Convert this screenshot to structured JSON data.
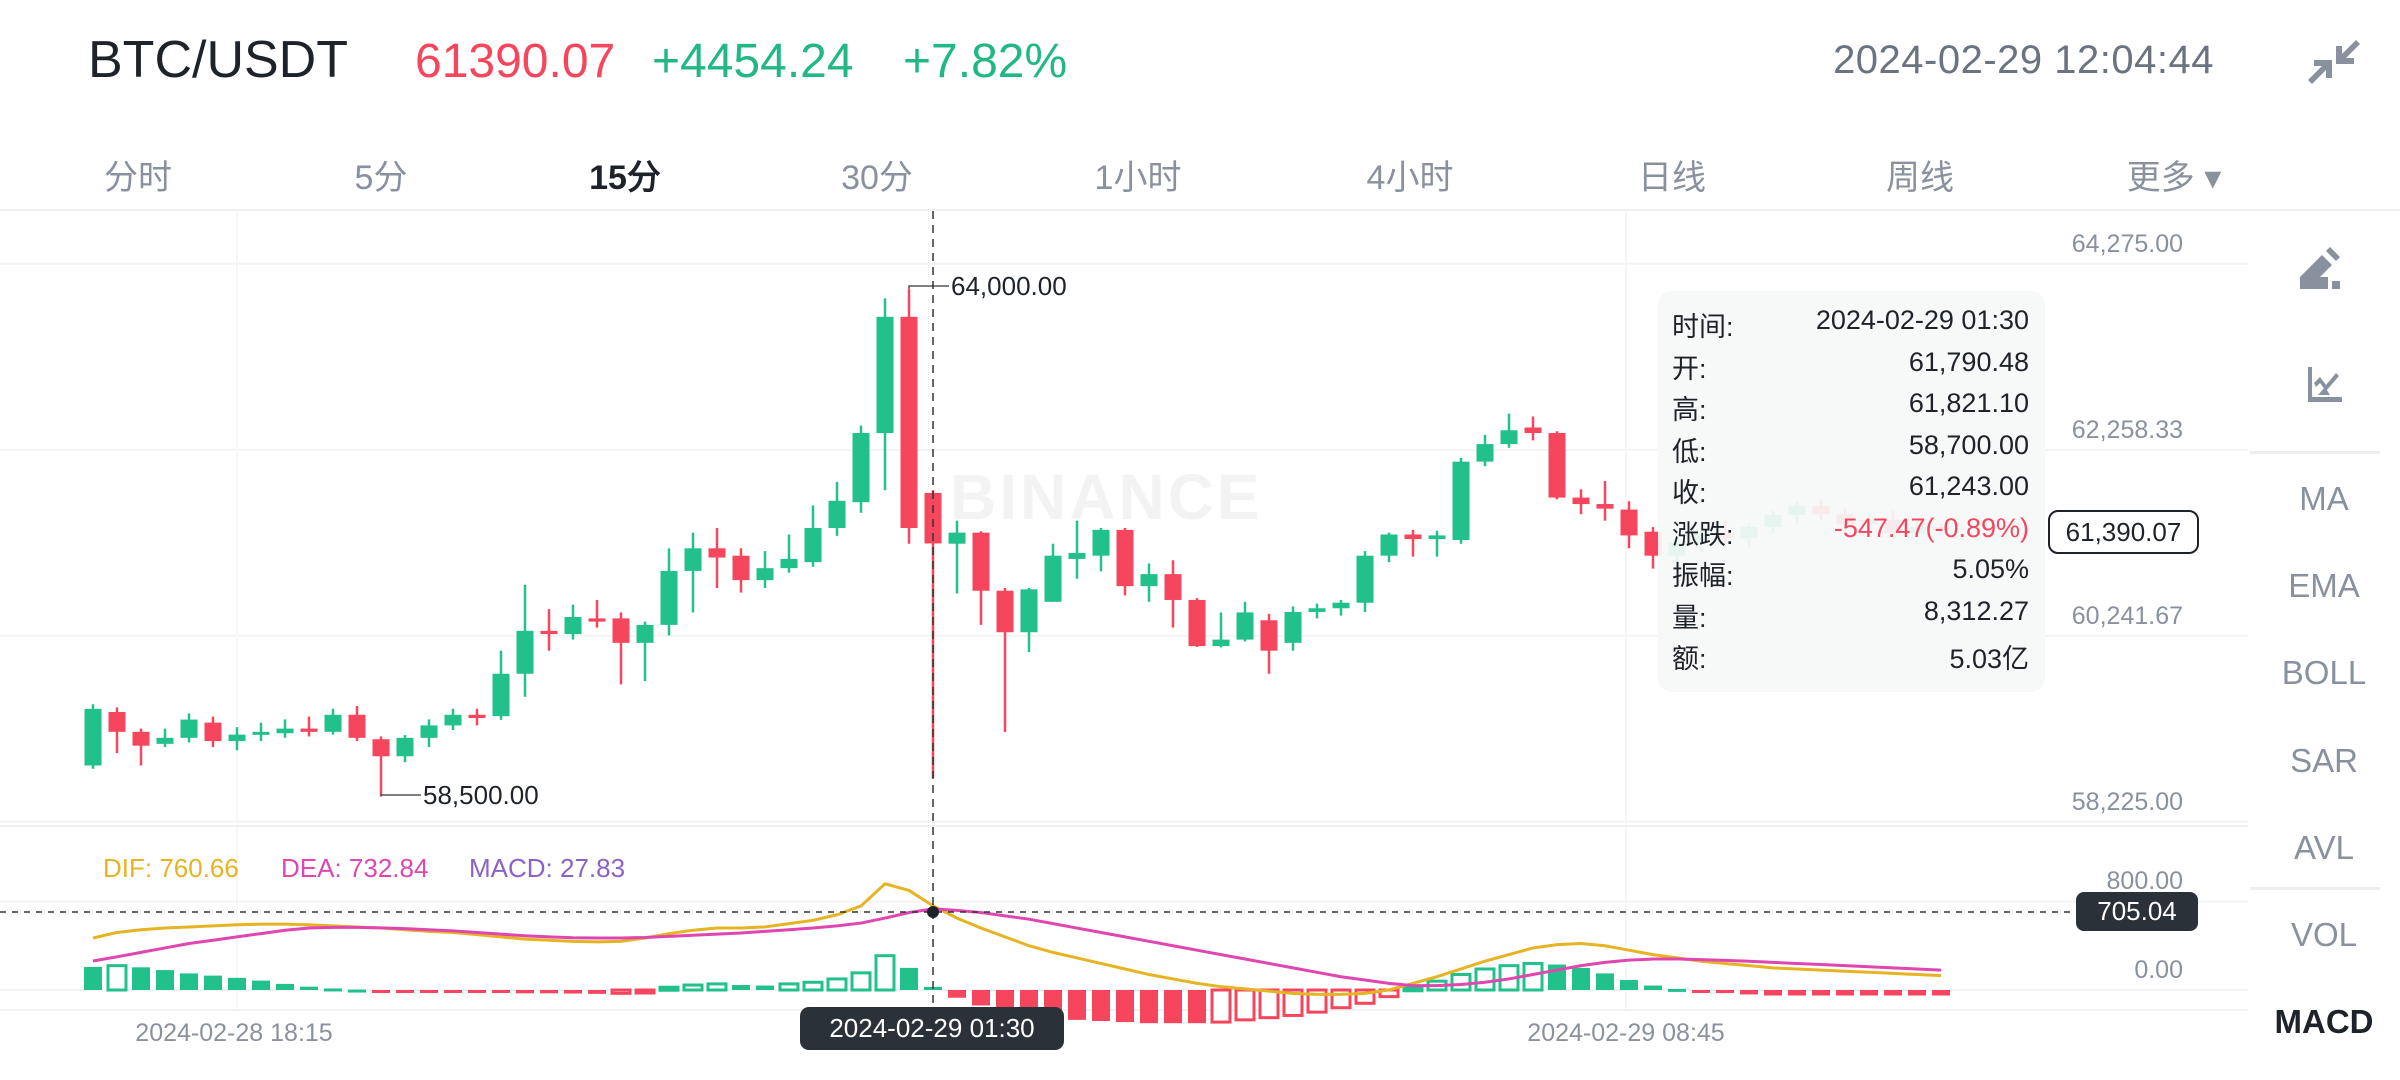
{
  "header": {
    "symbol": "BTC/USDT",
    "price": "61390.07",
    "change": "+4454.24",
    "change_pct": "+7.82%",
    "datetime": "2024-02-29 12:04:44",
    "shrink_icon": "collapse-arrows-icon"
  },
  "tabs": [
    {
      "label": "分时",
      "active": false
    },
    {
      "label": "5分",
      "active": false
    },
    {
      "label": "15分",
      "active": true
    },
    {
      "label": "30分",
      "active": false
    },
    {
      "label": "1小时",
      "active": false
    },
    {
      "label": "4小时",
      "active": false
    },
    {
      "label": "日线",
      "active": false
    },
    {
      "label": "周线",
      "active": false
    },
    {
      "label": "更多 ▾",
      "active": false
    }
  ],
  "sidebar": {
    "icons": [
      "draw-pencil-icon",
      "indicator-chart-icon"
    ],
    "items": [
      "MA",
      "EMA",
      "BOLL",
      "SAR",
      "AVL",
      "VOL",
      "MACD"
    ],
    "active": "MACD"
  },
  "watermark": "BINANCE",
  "tooltip": {
    "rows": [
      {
        "k": "时间:",
        "v": "2024-02-29 01:30"
      },
      {
        "k": "开:",
        "v": "61,790.48"
      },
      {
        "k": "高:",
        "v": "61,821.10"
      },
      {
        "k": "低:",
        "v": "58,700.00"
      },
      {
        "k": "收:",
        "v": "61,243.00"
      },
      {
        "k": "涨跌:",
        "v": "-547.47(-0.89%)"
      },
      {
        "k": "振幅:",
        "v": "5.05%"
      },
      {
        "k": "量:",
        "v": "8,312.27"
      },
      {
        "k": "额:",
        "v": "5.03亿"
      }
    ]
  },
  "current_price_label": "61,390.07",
  "crosshair": {
    "value_label": "705.04",
    "time_label": "2024-02-29 01:30",
    "index": 35,
    "macd_value": 705.04
  },
  "colors": {
    "up": "#22c08a",
    "down": "#f6465d",
    "dif": "#e6b422",
    "dea": "#e046b0",
    "macd": "#8a63c9"
  },
  "chart_data": [
    {
      "type": "candlestick",
      "title": "BTC/USDT 15分",
      "y_ticks": [
        "64,275.00",
        "62,258.33",
        "60,241.67",
        "58,225.00"
      ],
      "y_tick_values": [
        64275,
        62258.33,
        60241.67,
        58225
      ],
      "ylim": [
        58225,
        64275
      ],
      "x_labels": [
        {
          "index": 3,
          "label": "2024-02-28 18:15"
        },
        {
          "index": 65,
          "label": "2024-02-29 08:45"
        }
      ],
      "annotations": [
        {
          "index": 34,
          "label": "64,000.00",
          "type": "max"
        },
        {
          "index": 12,
          "label": "58,500.00",
          "type": "min"
        }
      ],
      "ohlc": [
        [
          58835,
          59499,
          58800,
          59449
        ],
        [
          59415,
          59465,
          58970,
          59200
        ],
        [
          59200,
          59235,
          58835,
          59050
        ],
        [
          59070,
          59235,
          59035,
          59135
        ],
        [
          59135,
          59400,
          59085,
          59333
        ],
        [
          59300,
          59365,
          59035,
          59100
        ],
        [
          59100,
          59250,
          59000,
          59170
        ],
        [
          59170,
          59300,
          59100,
          59200
        ],
        [
          59185,
          59335,
          59135,
          59235
        ],
        [
          59235,
          59365,
          59150,
          59200
        ],
        [
          59200,
          59450,
          59170,
          59385
        ],
        [
          59385,
          59480,
          59100,
          59135
        ],
        [
          59120,
          59150,
          58500,
          58935
        ],
        [
          58935,
          59165,
          58870,
          59135
        ],
        [
          59135,
          59335,
          59035,
          59270
        ],
        [
          59270,
          59450,
          59220,
          59385
        ],
        [
          59385,
          59450,
          59270,
          59350
        ],
        [
          59370,
          60080,
          59330,
          59830
        ],
        [
          59830,
          60795,
          59580,
          60295
        ],
        [
          60295,
          60530,
          60080,
          60260
        ],
        [
          60260,
          60580,
          60200,
          60445
        ],
        [
          60430,
          60630,
          60330,
          60395
        ],
        [
          60430,
          60495,
          59715,
          60165
        ],
        [
          60165,
          60395,
          59750,
          60360
        ],
        [
          60360,
          61190,
          60245,
          60945
        ],
        [
          60945,
          61360,
          60495,
          61190
        ],
        [
          61190,
          61410,
          60760,
          61090
        ],
        [
          61110,
          61190,
          60710,
          60845
        ],
        [
          60845,
          61160,
          60760,
          60975
        ],
        [
          60975,
          61340,
          60925,
          61075
        ],
        [
          61040,
          61655,
          60990,
          61410
        ],
        [
          61410,
          61910,
          61325,
          61705
        ],
        [
          61690,
          62520,
          61575,
          62440
        ],
        [
          62440,
          63900,
          61820,
          63700
        ],
        [
          63700,
          64000,
          61240,
          61410
        ],
        [
          61790.48,
          61821.1,
          58700,
          61243
        ],
        [
          61240,
          61490,
          60700,
          61360
        ],
        [
          61360,
          61375,
          60360,
          60730
        ],
        [
          60730,
          60760,
          59200,
          60280
        ],
        [
          60280,
          60760,
          60065,
          60745
        ],
        [
          60610,
          61240,
          60610,
          61110
        ],
        [
          61075,
          61490,
          60860,
          61140
        ],
        [
          61110,
          61410,
          60940,
          61390
        ],
        [
          61390,
          61410,
          60680,
          60780
        ],
        [
          60780,
          61025,
          60610,
          60910
        ],
        [
          60910,
          61060,
          60330,
          60630
        ],
        [
          60630,
          60650,
          60120,
          60130
        ],
        [
          60130,
          60495,
          60115,
          60200
        ],
        [
          60200,
          60610,
          60180,
          60495
        ],
        [
          60410,
          60480,
          59830,
          60080
        ],
        [
          60165,
          60560,
          60080,
          60500
        ],
        [
          60500,
          60590,
          60430,
          60540
        ],
        [
          60540,
          60630,
          60460,
          60600
        ],
        [
          60600,
          61160,
          60500,
          61110
        ],
        [
          61110,
          61360,
          61040,
          61340
        ],
        [
          61340,
          61390,
          61100,
          61290
        ],
        [
          61290,
          61380,
          61100,
          61330
        ],
        [
          61280,
          62170,
          61240,
          62130
        ],
        [
          62130,
          62420,
          62080,
          62320
        ],
        [
          62320,
          62650,
          62280,
          62470
        ],
        [
          62500,
          62620,
          62360,
          62440
        ],
        [
          62440,
          62460,
          61720,
          61740
        ],
        [
          61740,
          61830,
          61560,
          61670
        ],
        [
          61670,
          61920,
          61490,
          61620
        ],
        [
          61610,
          61700,
          61190,
          61330
        ],
        [
          61370,
          61420,
          60970,
          61110
        ],
        [
          61110,
          61300,
          61000,
          61250
        ],
        [
          61250,
          61400,
          61150,
          61350
        ],
        [
          61350,
          61500,
          61200,
          61300
        ],
        [
          61300,
          61450,
          61200,
          61420
        ],
        [
          61420,
          61600,
          61350,
          61550
        ],
        [
          61550,
          61700,
          61450,
          61650
        ],
        [
          61650,
          61720,
          61500,
          61560
        ],
        [
          61560,
          61620,
          61380,
          61450
        ],
        [
          61450,
          61560,
          61350,
          61500
        ],
        [
          61500,
          61600,
          61300,
          61350
        ],
        [
          61350,
          61480,
          61300,
          61420
        ],
        [
          61420,
          61450,
          61340,
          61390.07
        ]
      ]
    },
    {
      "type": "line",
      "title": "MACD",
      "legend": {
        "dif": "DIF: 760.66",
        "dea": "DEA: 732.84",
        "macd": "MACD: 27.83"
      },
      "y_ticks": [
        "800.00",
        "0.00"
      ],
      "y_tick_values": [
        800,
        0
      ],
      "dif": [
        470,
        520,
        545,
        560,
        570,
        580,
        590,
        595,
        595,
        590,
        580,
        570,
        560,
        545,
        530,
        520,
        500,
        480,
        460,
        450,
        440,
        435,
        440,
        470,
        510,
        540,
        560,
        560,
        570,
        600,
        630,
        680,
        760,
        960,
        900,
        760.66,
        650,
        560,
        480,
        400,
        340,
        290,
        240,
        190,
        140,
        100,
        60,
        30,
        10,
        -10,
        -30,
        -40,
        -40,
        -30,
        0,
        60,
        120,
        190,
        260,
        320,
        380,
        410,
        420,
        400,
        360,
        320,
        290,
        260,
        240,
        220,
        200,
        190,
        180,
        170,
        160,
        150,
        140,
        130
      ],
      "dea": [
        262,
        300,
        340,
        380,
        420,
        450,
        480,
        510,
        540,
        560,
        566,
        566,
        562,
        555,
        545,
        535,
        520,
        505,
        490,
        480,
        472,
        470,
        470,
        475,
        485,
        495,
        505,
        515,
        530,
        545,
        560,
        580,
        605,
        650,
        700,
        732.84,
        720,
        700,
        670,
        640,
        600,
        560,
        520,
        480,
        440,
        400,
        360,
        320,
        280,
        240,
        200,
        160,
        120,
        90,
        60,
        40,
        40,
        50,
        70,
        100,
        140,
        180,
        220,
        250,
        270,
        280,
        280,
        275,
        268,
        260,
        250,
        240,
        230,
        220,
        210,
        200,
        190,
        180
      ]
    }
  ]
}
